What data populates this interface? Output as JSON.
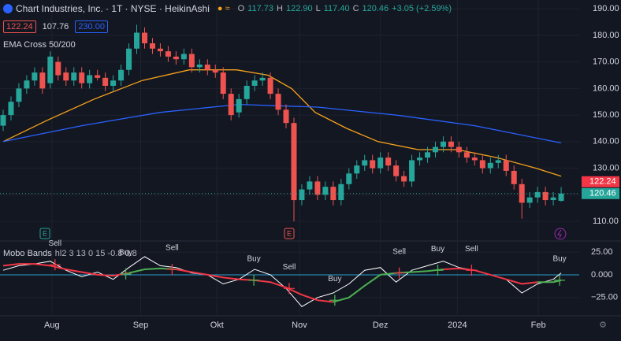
{
  "header": {
    "symbol": "Chart Industries, Inc. · 1T · NYSE · HeikinAshi",
    "ohlc": [
      {
        "label": "O",
        "value": "117.73"
      },
      {
        "label": "H",
        "value": "122.90"
      },
      {
        "label": "L",
        "value": "117.40"
      },
      {
        "label": "C",
        "value": "120.46"
      }
    ],
    "change": "+3.05 (+2.59%)",
    "inputs": [
      "122.24",
      "107.76",
      "230.00"
    ],
    "indicator": "EMA Cross 50/200",
    "events": [
      "E",
      "E"
    ],
    "price_tags": [
      {
        "value": 122.24,
        "label": "122.24"
      },
      {
        "value": 120.46,
        "label": "120.46"
      }
    ]
  },
  "chart_data": [
    {
      "type": "candlestick",
      "x": [
        0,
        1,
        2,
        3,
        4,
        5,
        6,
        7,
        8,
        9,
        10,
        11,
        12,
        13,
        14,
        15,
        16,
        17,
        18,
        19,
        20,
        21,
        22,
        23,
        24,
        25,
        26,
        27,
        28,
        29,
        30,
        31,
        32,
        33,
        34,
        35,
        36,
        37,
        38,
        39,
        40,
        41,
        42,
        43,
        44,
        45,
        46,
        47,
        48,
        49,
        50,
        51,
        52,
        53,
        54,
        55,
        56,
        57,
        58,
        59,
        60,
        61,
        62,
        63,
        64,
        65,
        66,
        67,
        68,
        69,
        70,
        71
      ],
      "open": [
        146,
        150,
        155,
        160,
        163,
        166,
        162,
        170,
        166,
        163,
        166,
        162,
        165,
        164,
        161,
        163,
        167,
        175,
        181,
        177,
        175,
        174,
        172,
        171,
        173,
        168,
        169,
        167,
        166,
        158,
        151,
        156,
        161,
        163,
        164,
        158,
        152,
        147,
        118,
        122,
        125,
        120,
        123,
        118,
        124,
        128,
        131,
        133,
        130,
        134,
        131,
        127,
        125,
        133,
        134,
        136,
        138,
        140,
        138,
        136,
        134,
        133,
        130,
        132,
        133,
        129,
        124,
        117,
        119,
        121,
        118,
        117.73
      ],
      "high": [
        152,
        157,
        162,
        165,
        168,
        168,
        174,
        172,
        168,
        168,
        168,
        167,
        167,
        166,
        165,
        169,
        177,
        184,
        183,
        179,
        177,
        176,
        174,
        175,
        175,
        171,
        171,
        169,
        168,
        160,
        158,
        163,
        165,
        166,
        166,
        160,
        154,
        149,
        124,
        127,
        127,
        125,
        125,
        126,
        130,
        133,
        135,
        135,
        136,
        136,
        133,
        129,
        135,
        136,
        138,
        140,
        142,
        142,
        140,
        138,
        136,
        135,
        134,
        135,
        135,
        131,
        126,
        121,
        123,
        123,
        121,
        122.9
      ],
      "low": [
        144,
        148,
        153,
        158,
        161,
        158,
        160,
        163,
        161,
        161,
        160,
        160,
        163,
        159,
        159,
        161,
        165,
        173,
        175,
        173,
        172,
        170,
        169,
        169,
        166,
        166,
        165,
        164,
        156,
        148,
        149,
        154,
        159,
        161,
        156,
        150,
        145,
        110,
        116,
        120,
        118,
        118,
        116,
        116,
        122,
        126,
        129,
        128,
        128,
        129,
        125,
        123,
        123,
        131,
        132,
        134,
        136,
        136,
        134,
        132,
        131,
        128,
        128,
        130,
        127,
        122,
        111,
        115,
        117,
        116,
        116,
        117.4
      ],
      "close": [
        150,
        155,
        160,
        163,
        166,
        160,
        172,
        165,
        163,
        166,
        162,
        165,
        164,
        161,
        163,
        167,
        175,
        181,
        177,
        175,
        174,
        172,
        171,
        173,
        168,
        169,
        167,
        166,
        158,
        150,
        156,
        161,
        163,
        164,
        158,
        152,
        147,
        118,
        122,
        125,
        120,
        123,
        118,
        124,
        128,
        131,
        133,
        130,
        134,
        131,
        127,
        125,
        133,
        134,
        136,
        138,
        140,
        138,
        136,
        134,
        133,
        130,
        132,
        133,
        129,
        124,
        117,
        119,
        121,
        118,
        119,
        120.46
      ],
      "up_color": "#26a69a",
      "down_color": "#ef5350",
      "series": [
        {
          "color": "#f7a21b",
          "x": [
            0,
            5.6,
            11.6,
            17.7,
            23.7,
            29.7,
            33.7,
            36.7,
            39.7,
            43.7,
            47.7,
            52.8,
            57.8,
            62.8,
            67.8,
            71
          ],
          "values": [
            140,
            148,
            156,
            163,
            167,
            167,
            165,
            160,
            151,
            145,
            140,
            137,
            137,
            134,
            130,
            127
          ]
        },
        {
          "color": "#2962ff",
          "x": [
            0,
            10,
            20,
            30,
            40,
            50,
            60,
            71
          ],
          "values": [
            140,
            146,
            151,
            154,
            153,
            150,
            146,
            139.5
          ]
        }
      ],
      "xlim": [
        -0.4,
        73.3
      ],
      "ylim": [
        102.9,
        193.3
      ],
      "yticks": [
        {
          "value": 110,
          "label": "110.00"
        },
        {
          "value": 120,
          "label": "120.00"
        },
        {
          "value": 130,
          "label": "130.00"
        },
        {
          "value": 140,
          "label": "140.00"
        },
        {
          "value": 150,
          "label": "150.00"
        },
        {
          "value": 160,
          "label": "160.00"
        },
        {
          "value": 170,
          "label": "170.00"
        },
        {
          "value": 180,
          "label": "180.00"
        },
        {
          "value": 190,
          "label": "190.00"
        }
      ],
      "xticks": [
        {
          "value": 6.2,
          "label": "Aug"
        },
        {
          "value": 17.5,
          "label": "Sep"
        },
        {
          "value": 27.2,
          "label": "Okt"
        },
        {
          "value": 37.7,
          "label": "Nov"
        },
        {
          "value": 48,
          "label": "Dez"
        },
        {
          "value": 57.8,
          "label": "2024"
        },
        {
          "value": 68.1,
          "label": "Feb"
        }
      ],
      "grid": true
    },
    {
      "type": "line",
      "title": "Mobo Bands",
      "subtitle": "hl2 3 13 0 15 -0.8 0.8",
      "series": [
        {
          "color": "#ffffff",
          "x": [
            0,
            2,
            4,
            6,
            8,
            10,
            12,
            14,
            16,
            18,
            20,
            22,
            24,
            26,
            28,
            30,
            32,
            34,
            36,
            38,
            40,
            42,
            44,
            46,
            48,
            50,
            52,
            54,
            56,
            58,
            60,
            62,
            64,
            66,
            68,
            70,
            71
          ],
          "values": [
            5,
            10,
            12,
            15,
            5,
            -2,
            3,
            -5,
            8,
            20,
            10,
            8,
            2,
            0,
            -10,
            -5,
            6,
            0,
            -15,
            -35,
            -25,
            -20,
            -10,
            5,
            8,
            -8,
            5,
            10,
            15,
            8,
            5,
            0,
            -5,
            -20,
            -10,
            -5,
            2
          ]
        },
        {
          "color": "#f23645",
          "x": [
            0,
            2,
            4,
            6,
            8,
            10,
            12,
            14,
            16,
            18,
            20,
            22,
            24,
            26,
            28,
            30,
            32,
            34,
            36,
            38,
            40,
            42,
            44,
            46,
            48,
            50,
            52,
            54,
            56,
            58,
            60,
            62,
            64,
            66,
            68,
            70,
            71
          ],
          "values": [
            10,
            12,
            12,
            10,
            6,
            3,
            0,
            -1,
            2,
            null,
            null,
            6,
            3,
            0,
            -3,
            -5,
            -6,
            -8,
            -14,
            -22,
            -28,
            -30,
            null,
            null,
            null,
            null,
            null,
            null,
            6,
            7,
            5,
            0,
            -5,
            -10,
            -8,
            null,
            null
          ]
        },
        {
          "color": "#4caf50",
          "x": [
            0,
            2,
            4,
            6,
            8,
            10,
            12,
            14,
            16,
            18,
            20,
            22,
            24,
            26,
            28,
            30,
            32,
            34,
            36,
            38,
            40,
            42,
            44,
            46,
            48,
            50,
            52,
            54,
            56,
            58,
            60,
            62,
            64,
            66,
            68,
            70,
            71
          ],
          "values": [
            null,
            null,
            null,
            null,
            null,
            null,
            null,
            null,
            2,
            6,
            7,
            6,
            null,
            null,
            null,
            null,
            null,
            null,
            null,
            null,
            null,
            -30,
            -25,
            -12,
            0,
            2,
            3,
            4,
            6,
            null,
            null,
            null,
            null,
            null,
            -8,
            -8,
            -6
          ]
        }
      ],
      "signals": [
        {
          "label": "Sell",
          "x": 6.6,
          "y": 11
        },
        {
          "label": "Buy",
          "x": 15.6,
          "y": 1
        },
        {
          "label": "Sell",
          "x": 21.5,
          "y": 6
        },
        {
          "label": "Buy",
          "x": 31.9,
          "y": -6
        },
        {
          "label": "Sell",
          "x": 36.4,
          "y": -15
        },
        {
          "label": "Buy",
          "x": 42.2,
          "y": -28
        },
        {
          "label": "Sell",
          "x": 50.4,
          "y": 2
        },
        {
          "label": "Buy",
          "x": 55.3,
          "y": 5
        },
        {
          "label": "Sell",
          "x": 59.6,
          "y": 5
        },
        {
          "label": "Buy",
          "x": 70.8,
          "y": -6
        }
      ],
      "zero_color": "#2a9fd0",
      "xlim": [
        -0.4,
        73.3
      ],
      "ylim": [
        -44.3,
        36.4
      ],
      "yticks": [
        {
          "value": 25,
          "label": "25.00"
        },
        {
          "value": 0,
          "label": "0.000"
        },
        {
          "value": -25,
          "label": "−25.00"
        }
      ],
      "grid": true
    }
  ]
}
